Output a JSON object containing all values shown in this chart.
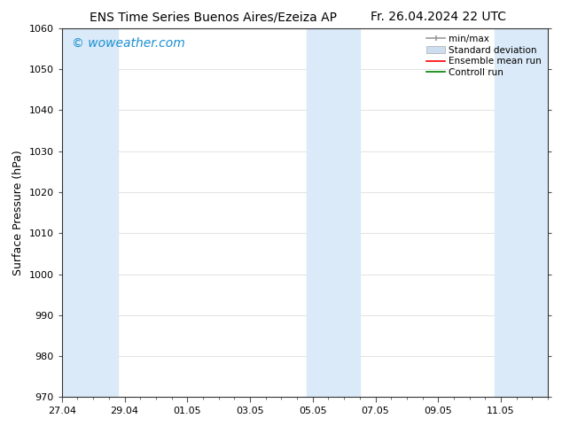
{
  "title_left": "ENS Time Series Buenos Aires/Ezeiza AP",
  "title_right": "Fr. 26.04.2024 22 UTC",
  "ylabel": "Surface Pressure (hPa)",
  "ylim": [
    970,
    1060
  ],
  "yticks": [
    970,
    980,
    990,
    1000,
    1010,
    1020,
    1030,
    1040,
    1050,
    1060
  ],
  "xtick_labels": [
    "27.04",
    "29.04",
    "01.05",
    "03.05",
    "05.05",
    "07.05",
    "09.05",
    "11.05"
  ],
  "xtick_positions": [
    0,
    2,
    4,
    6,
    8,
    10,
    12,
    14
  ],
  "xlim": [
    0,
    15.5
  ],
  "watermark": "© woweather.com",
  "watermark_color": "#1a8fd1",
  "bg_color": "#ffffff",
  "plot_bg_color": "#ffffff",
  "shaded_bands": [
    {
      "x_start": 0.0,
      "x_end": 1.8
    },
    {
      "x_start": 7.8,
      "x_end": 9.5
    },
    {
      "x_start": 13.8,
      "x_end": 15.5
    }
  ],
  "band_color": "#daeaf8",
  "legend_items": [
    {
      "label": "min/max",
      "color": "#aaaaaa",
      "type": "errorbar"
    },
    {
      "label": "Standard deviation",
      "color": "#ccddf0",
      "type": "band"
    },
    {
      "label": "Ensemble mean run",
      "color": "#ff0000",
      "type": "line"
    },
    {
      "label": "Controll run",
      "color": "#008000",
      "type": "line"
    }
  ],
  "title_fontsize": 10,
  "tick_fontsize": 8,
  "ylabel_fontsize": 9,
  "legend_fontsize": 7.5,
  "watermark_fontsize": 10
}
